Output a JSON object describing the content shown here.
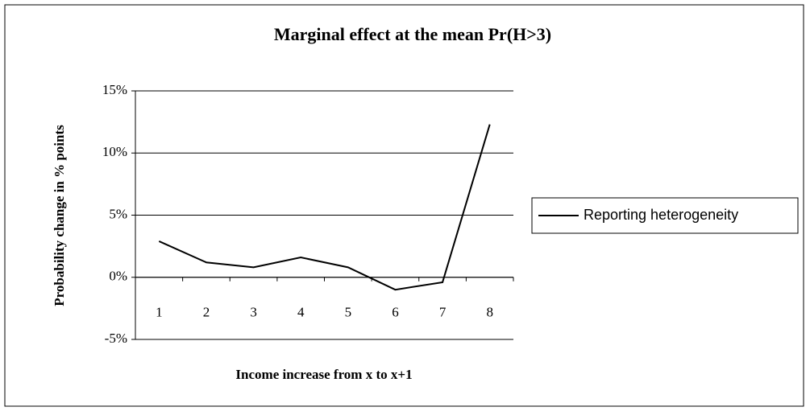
{
  "chart_data": {
    "type": "line",
    "title": "Marginal effect at the mean Pr(H>3)",
    "x_label": "Income increase from x to x+1",
    "y_label": "Probability change in % points",
    "categories": [
      "1",
      "2",
      "3",
      "4",
      "5",
      "6",
      "7",
      "8"
    ],
    "series": [
      {
        "name": "Reporting heterogeneity",
        "color": "#000000",
        "values": [
          2.9,
          1.2,
          0.8,
          1.6,
          0.8,
          -1.0,
          -0.4,
          12.3
        ]
      }
    ],
    "ylim": [
      -5,
      15
    ],
    "yticks": [
      {
        "value": -5,
        "label": "-5%"
      },
      {
        "value": 0,
        "label": "0%"
      },
      {
        "value": 5,
        "label": "5%"
      },
      {
        "value": 10,
        "label": "10%"
      },
      {
        "value": 15,
        "label": "15%"
      }
    ],
    "grid": true,
    "legend": "right"
  }
}
